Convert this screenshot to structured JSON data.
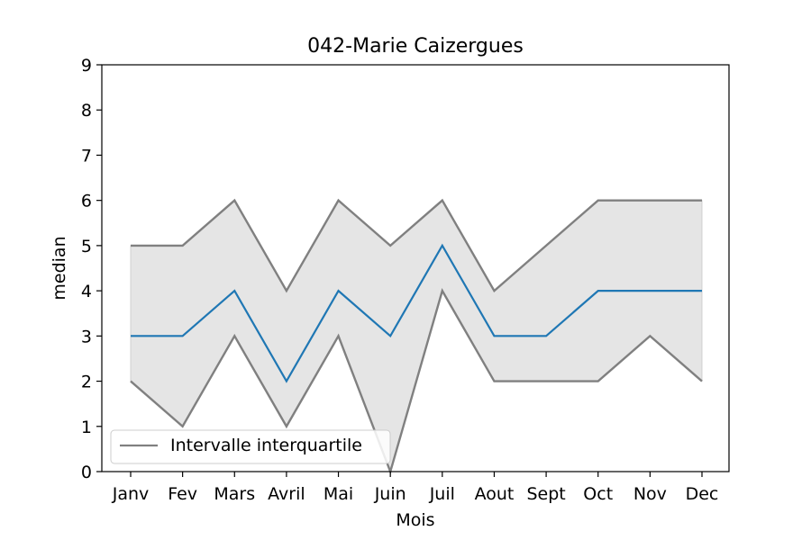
{
  "chart_data": {
    "type": "line",
    "title": "042-Marie Caizergues",
    "xlabel": "Mois",
    "ylabel": "median",
    "categories": [
      "Janv",
      "Fev",
      "Mars",
      "Avril",
      "Mai",
      "Juin",
      "Juil",
      "Aout",
      "Sept",
      "Oct",
      "Nov",
      "Dec"
    ],
    "ylim": [
      0,
      9
    ],
    "yticks": [
      "0",
      "1",
      "2",
      "3",
      "4",
      "5",
      "6",
      "7",
      "8",
      "9"
    ],
    "grid": false,
    "legend_position": "lower-left",
    "series": [
      {
        "values": [
          3,
          3,
          4,
          2,
          4,
          3,
          5,
          3,
          3,
          4,
          4,
          4
        ],
        "color": "#1f77b4"
      }
    ],
    "interquartile_band": {
      "name": "Intervalle interquartile",
      "upper": [
        5,
        5,
        6,
        4,
        6,
        5,
        6,
        4,
        5,
        6,
        6,
        6
      ],
      "lower": [
        2,
        1,
        3,
        1,
        3,
        0,
        4,
        2,
        2,
        2,
        3,
        2
      ],
      "line_color": "#808080",
      "fill_color": "#e5e5e5"
    }
  }
}
